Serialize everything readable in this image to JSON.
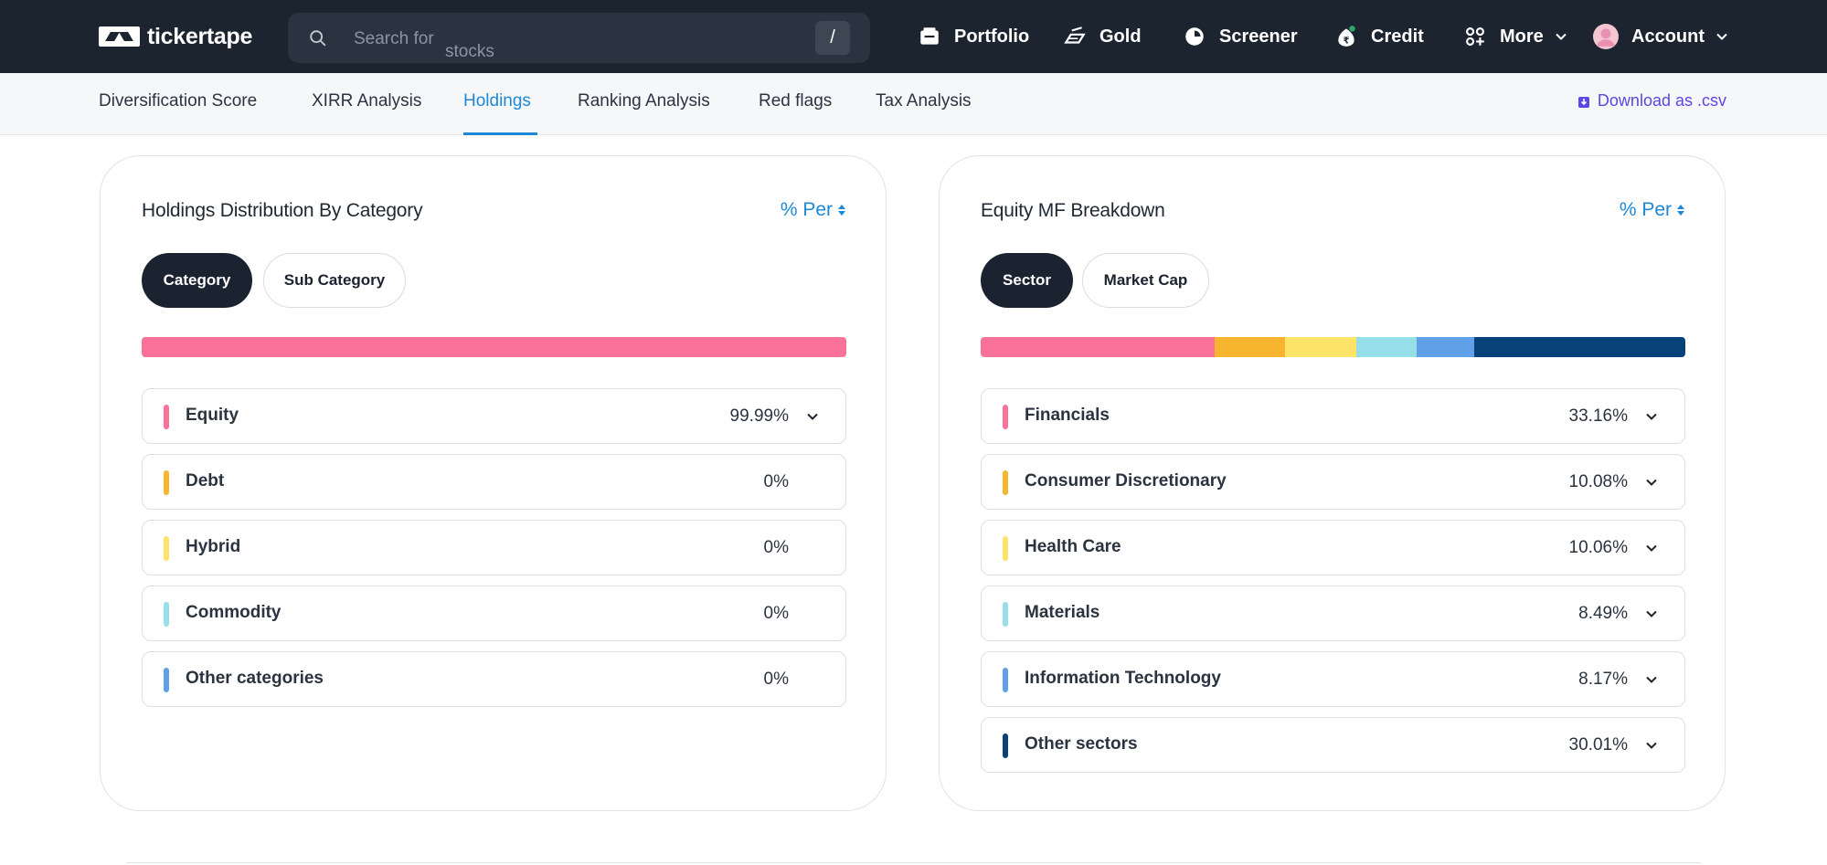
{
  "header": {
    "logo_text": "tickertape",
    "search_placeholder": "Search for",
    "search_placeholder_suffix": "stocks",
    "search_shortcut": "/",
    "nav": [
      {
        "label": "Portfolio",
        "icon": "portfolio-icon"
      },
      {
        "label": "Gold",
        "icon": "gold-icon"
      },
      {
        "label": "Screener",
        "icon": "screener-icon"
      },
      {
        "label": "Credit",
        "icon": "credit-icon"
      },
      {
        "label": "More",
        "icon": "more-grid-icon"
      },
      {
        "label": "Account",
        "icon": "avatar"
      }
    ]
  },
  "subnav": {
    "tabs": [
      "Diversification Score",
      "XIRR Analysis",
      "Holdings",
      "Ranking Analysis",
      "Red flags",
      "Tax Analysis"
    ],
    "active_tab": "Holdings",
    "download_label": "Download as .csv"
  },
  "category_card": {
    "title": "Holdings Distribution By Category",
    "toggle_label": "% Per",
    "pills": [
      "Category",
      "Sub Category"
    ],
    "active_pill": "Category",
    "items": [
      {
        "label": "Equity",
        "value": "99.99%",
        "color": "#fb7298",
        "pct": 99.99,
        "expandable": true
      },
      {
        "label": "Debt",
        "value": "0%",
        "color": "#f7b42f",
        "pct": 0,
        "expandable": false
      },
      {
        "label": "Hybrid",
        "value": "0%",
        "color": "#fde468",
        "pct": 0,
        "expandable": false
      },
      {
        "label": "Commodity",
        "value": "0%",
        "color": "#96dfe9",
        "pct": 0,
        "expandable": false
      },
      {
        "label": "Other categories",
        "value": "0%",
        "color": "#60a0e8",
        "pct": 0,
        "expandable": false
      }
    ]
  },
  "equity_card": {
    "title": "Equity MF Breakdown",
    "toggle_label": "% Per",
    "pills": [
      "Sector",
      "Market Cap"
    ],
    "active_pill": "Sector",
    "items": [
      {
        "label": "Financials",
        "value": "33.16%",
        "color": "#fb7298",
        "pct": 33.16,
        "expandable": true
      },
      {
        "label": "Consumer Discretionary",
        "value": "10.08%",
        "color": "#f7b42f",
        "pct": 10.08,
        "expandable": true
      },
      {
        "label": "Health Care",
        "value": "10.06%",
        "color": "#fde468",
        "pct": 10.06,
        "expandable": true
      },
      {
        "label": "Materials",
        "value": "8.49%",
        "color": "#96dfe9",
        "pct": 8.49,
        "expandable": true
      },
      {
        "label": "Information Technology",
        "value": "8.17%",
        "color": "#60a0e8",
        "pct": 8.17,
        "expandable": true
      },
      {
        "label": "Other sectors",
        "value": "30.01%",
        "color": "#074378",
        "pct": 30.01,
        "expandable": true
      }
    ]
  }
}
